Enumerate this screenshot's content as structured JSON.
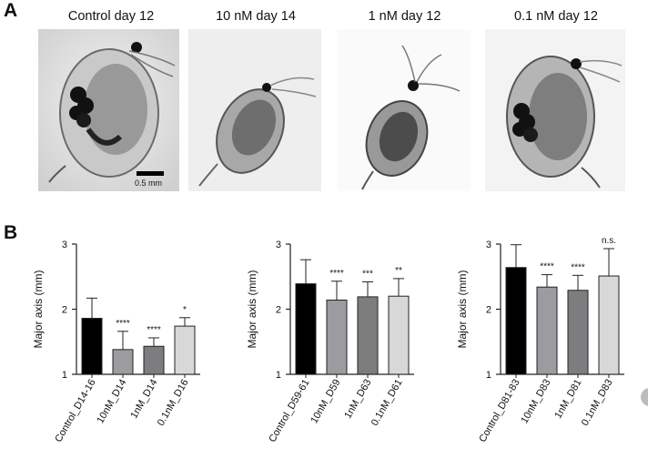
{
  "panel_a": {
    "letter": "A",
    "photos": [
      {
        "label": "Control day 12",
        "eggs": true
      },
      {
        "label": "10 nM day 14",
        "eggs": false
      },
      {
        "label": "1 nM day 12",
        "eggs": false
      },
      {
        "label": "0.1 nM day 12",
        "eggs": true
      }
    ],
    "scale_bar_label": "0.5 mm"
  },
  "panel_b": {
    "letter": "B"
  },
  "chart_data": [
    {
      "type": "bar",
      "ylabel": "Major axis (mm)",
      "ylim": [
        1,
        3
      ],
      "yticks": [
        "1",
        "2",
        "3"
      ],
      "categories": [
        "Control_D14-16",
        "10nM_D14",
        "1nM_D14",
        "0.1nM_D16"
      ],
      "values": [
        1.86,
        1.38,
        1.43,
        1.74
      ],
      "errors": [
        0.31,
        0.28,
        0.13,
        0.13
      ],
      "annotations": [
        "",
        "****",
        "****",
        "*"
      ],
      "colors": [
        "#000000",
        "#9c9ca0",
        "#7d7d80",
        "#d8d8d8"
      ]
    },
    {
      "type": "bar",
      "ylabel": "Major axis (mm)",
      "ylim": [
        1,
        3
      ],
      "yticks": [
        "1",
        "2",
        "3"
      ],
      "categories": [
        "Control_D59-61",
        "10nM_D59",
        "1nM_D63",
        "0.1nM_D61"
      ],
      "values": [
        2.39,
        2.14,
        2.19,
        2.2
      ],
      "errors": [
        0.37,
        0.29,
        0.23,
        0.27
      ],
      "annotations": [
        "",
        "****",
        "***",
        "**"
      ],
      "colors": [
        "#000000",
        "#9c9ca0",
        "#7d7d80",
        "#d8d8d8"
      ]
    },
    {
      "type": "bar",
      "ylabel": "Major axis (mm)",
      "ylim": [
        1,
        3
      ],
      "yticks": [
        "1",
        "2",
        "3"
      ],
      "categories": [
        "Control_D81-83",
        "10nM_D83",
        "1nM_D81",
        "0.1nM_D83"
      ],
      "values": [
        2.64,
        2.34,
        2.29,
        2.51
      ],
      "errors": [
        0.35,
        0.19,
        0.23,
        0.42
      ],
      "annotations": [
        "",
        "****",
        "****",
        "n.s."
      ],
      "colors": [
        "#000000",
        "#9c9ca0",
        "#7d7d80",
        "#d8d8d8"
      ]
    }
  ]
}
